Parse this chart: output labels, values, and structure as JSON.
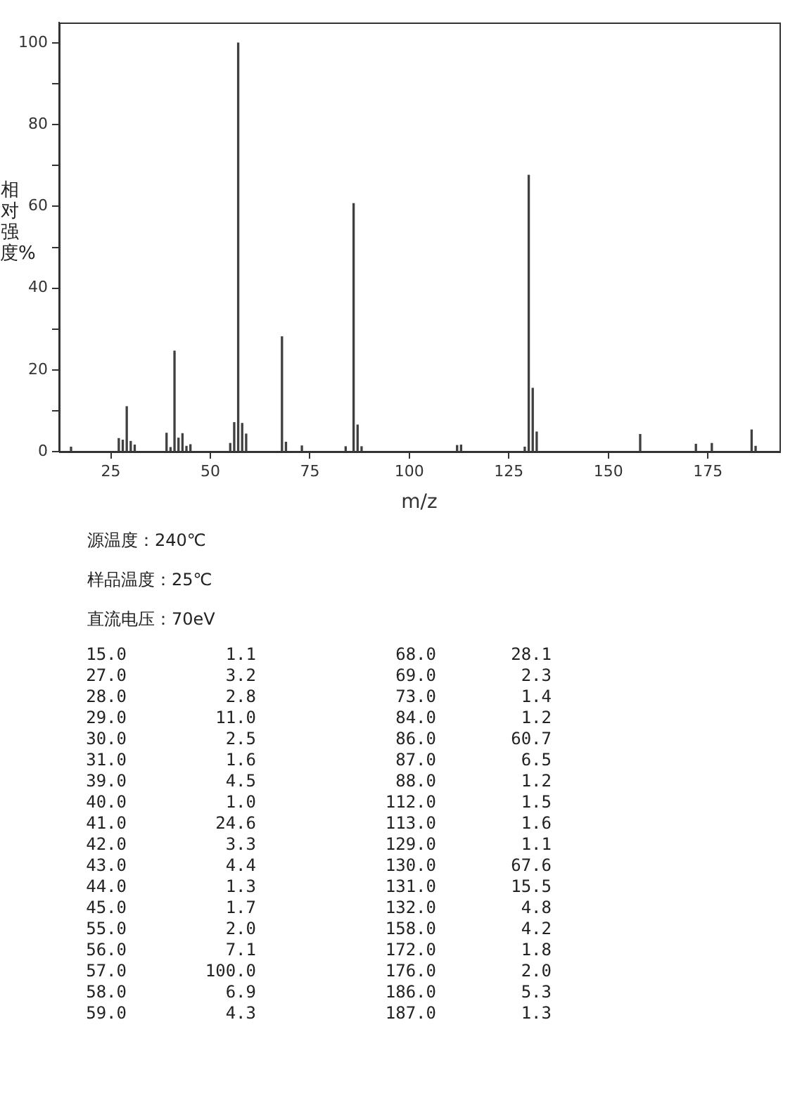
{
  "chart_data": {
    "type": "bar",
    "xlabel": "m/z",
    "ylabel": "相对强度%",
    "x": [
      15,
      27,
      28,
      29,
      30,
      31,
      39,
      40,
      41,
      42,
      43,
      44,
      45,
      55,
      56,
      57,
      58,
      59,
      68,
      69,
      73,
      84,
      86,
      87,
      88,
      112,
      113,
      129,
      130,
      131,
      132,
      158,
      172,
      176,
      186,
      187
    ],
    "values": [
      1.1,
      3.2,
      2.8,
      11.0,
      2.5,
      1.6,
      4.5,
      1.0,
      24.6,
      3.3,
      4.4,
      1.3,
      1.7,
      2.0,
      7.1,
      100.0,
      6.9,
      4.3,
      28.1,
      2.3,
      1.4,
      1.2,
      60.7,
      6.5,
      1.2,
      1.5,
      1.6,
      1.1,
      67.6,
      15.5,
      4.8,
      4.2,
      1.8,
      2.0,
      5.3,
      1.3
    ],
    "color": "#404040",
    "xlim": [
      12,
      193
    ],
    "xticks": [
      25,
      50,
      75,
      100,
      125,
      150,
      175
    ],
    "ylim": [
      0,
      105
    ],
    "yticks": [
      0,
      {
        "value": 10,
        "label": null
      },
      20,
      {
        "value": 30,
        "label": null
      },
      40,
      {
        "value": 50,
        "label": null
      },
      60,
      {
        "value": 70,
        "label": null
      },
      80,
      {
        "value": 90,
        "label": null
      },
      100
    ],
    "annotations": [
      "源温度：240℃",
      "样品温度：25℃",
      "直流电压：70eV",
      "15.0",
      "1.1",
      "68.0",
      "28.1",
      "27.0",
      "3.2",
      "69.0",
      "2.3",
      "28.0",
      "2.8",
      "73.0",
      "1.4",
      "29.0",
      "11.0",
      "84.0",
      "1.2",
      "30.0",
      "2.5",
      "86.0",
      "60.7",
      "31.0",
      "1.6",
      "87.0",
      "6.5",
      "39.0",
      "4.5",
      "88.0",
      "1.2",
      "40.0",
      "1.0",
      "112.0",
      "1.5",
      "41.0",
      "24.6",
      "113.0",
      "1.6",
      "42.0",
      "3.3",
      "129.0",
      "1.1",
      "43.0",
      "4.4",
      "130.0",
      "67.6",
      "44.0",
      "1.3",
      "131.0",
      "15.5",
      "45.0",
      "1.7",
      "132.0",
      "4.8",
      "55.0",
      "2.0",
      "158.0",
      "4.2",
      "56.0",
      "7.1",
      "172.0",
      "1.8",
      "57.0",
      "100.0",
      "176.0",
      "2.0",
      "58.0",
      "6.9",
      "186.0",
      "5.3",
      "59.0",
      "4.3",
      "187.0",
      "1.3"
    ],
    "grid": false,
    "legend": false
  }
}
